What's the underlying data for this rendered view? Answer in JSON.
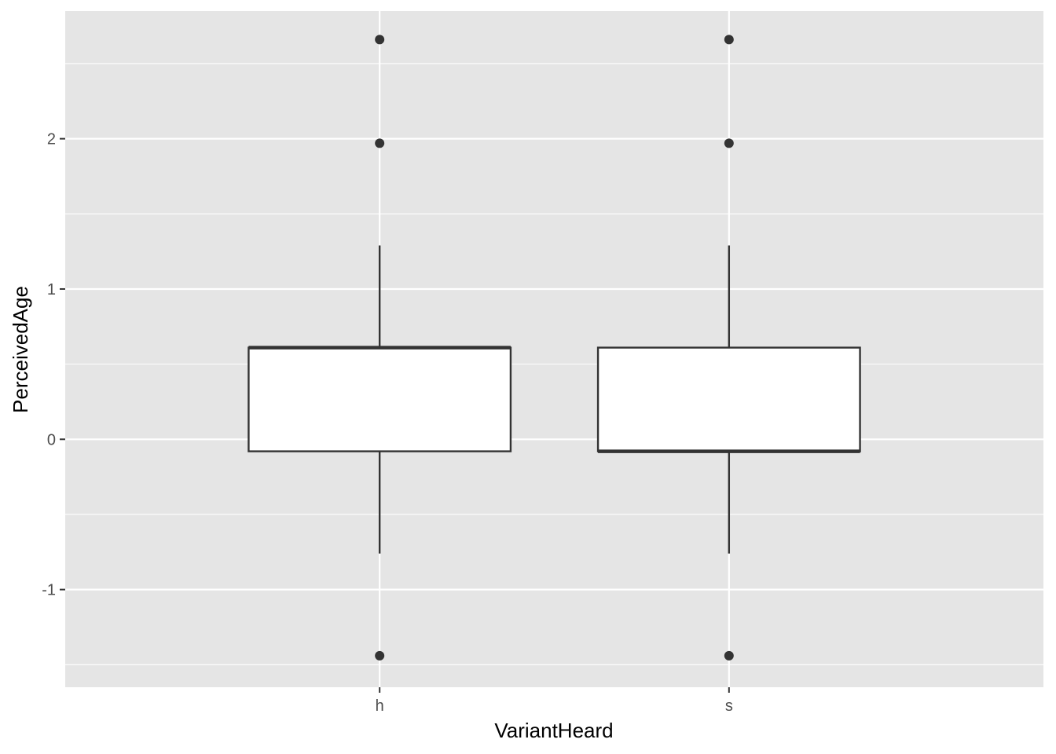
{
  "chart_data": {
    "type": "boxplot",
    "xlabel": "VariantHeard",
    "ylabel": "PerceivedAge",
    "categories": [
      "h",
      "s"
    ],
    "ylim": [
      -1.65,
      2.85
    ],
    "yticks": [
      -1,
      0,
      1,
      2
    ],
    "ytick_labels": [
      "-1",
      "0",
      "1",
      "2"
    ],
    "grid": true,
    "boxes": [
      {
        "category": "h",
        "whisker_low": -0.76,
        "q1": -0.08,
        "median": 0.61,
        "q3": 0.61,
        "whisker_high": 1.29,
        "outliers": [
          2.66,
          1.97,
          -1.44
        ]
      },
      {
        "category": "s",
        "whisker_low": -0.76,
        "q1": -0.08,
        "median": -0.08,
        "q3": 0.61,
        "whisker_high": 1.29,
        "outliers": [
          2.66,
          1.97,
          -1.44
        ]
      }
    ],
    "colors": {
      "panel_background": "#e5e5e5",
      "grid": "#ffffff",
      "box_fill": "#ffffff",
      "box_line": "#333333"
    }
  }
}
